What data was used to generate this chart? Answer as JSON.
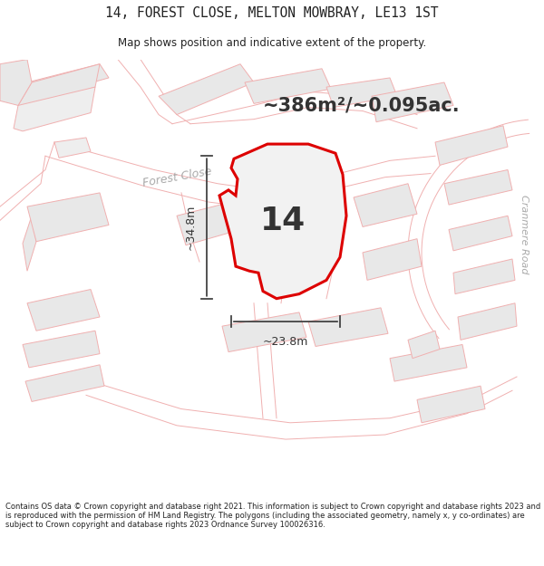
{
  "title": "14, FOREST CLOSE, MELTON MOWBRAY, LE13 1ST",
  "subtitle": "Map shows position and indicative extent of the property.",
  "area_text": "~386m²/~0.095ac.",
  "plot_number": "14",
  "width_label": "~23.8m",
  "height_label": "~34.8m",
  "road_label_1": "Forest Close",
  "road_label_2": "Cranmere Road",
  "footer": "Contains OS data © Crown copyright and database right 2021. This information is subject to Crown copyright and database rights 2023 and is reproduced with the permission of HM Land Registry. The polygons (including the associated geometry, namely x, y co-ordinates) are subject to Crown copyright and database rights 2023 Ordnance Survey 100026316.",
  "bg_color": "#ffffff",
  "map_bg": "#ffffff",
  "road_line_color": "#f0a0a0",
  "road_fill_color": "#ffffff",
  "block_fill": "#e8e8e8",
  "block_edge": "#e0e0e0",
  "highlight_color": "#dd0000",
  "plot_fill": "#f0f0f0",
  "title_color": "#222222",
  "footer_color": "#222222"
}
